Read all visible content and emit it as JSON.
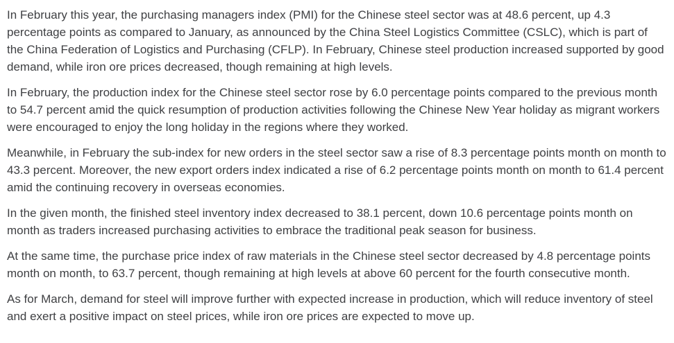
{
  "article": {
    "topic": "Chinese steel sector PMI February report",
    "paragraphs": [
      "In February this year, the purchasing managers index (PMI) for the Chinese steel sector was at 48.6 percent, up 4.3 percentage points as compared to January, as announced by the China Steel Logistics Committee (CSLC), which is part of the China Federation of Logistics and Purchasing (CFLP). In February, Chinese steel production increased supported by good demand, while iron ore prices decreased, though remaining at high levels.",
      "In February, the production index for the Chinese steel sector rose by 6.0 percentage points compared to the previous month to 54.7 percent amid the quick resumption of production activities following the Chinese New Year holiday as migrant workers were encouraged to enjoy the long holiday in the regions where they worked.",
      "Meanwhile, in February the sub-index for new orders in the steel sector saw a rise of 8.3 percentage points month on month to 43.3 percent. Moreover, the new export orders index indicated a rise of 6.2 percentage points month on month to 61.4 percent amid the continuing recovery in overseas economies.",
      "In the given month, the finished steel inventory index decreased to 38.1 percent, down 10.6 percentage points month on month as traders increased purchasing activities to embrace the traditional peak season for business.",
      "At the same time, the purchase price index of raw materials in the Chinese steel sector decreased by 4.8 percentage points month on month, to 63.7 percent, though remaining at high levels at above 60 percent for the fourth consecutive month.",
      "As for March, demand for steel will improve further with expected increase in production, which will reduce inventory of steel and exert a positive impact on steel prices, while iron ore prices are expected to move up."
    ]
  },
  "colors": {
    "text": "#3f4043",
    "background": "#ffffff"
  }
}
